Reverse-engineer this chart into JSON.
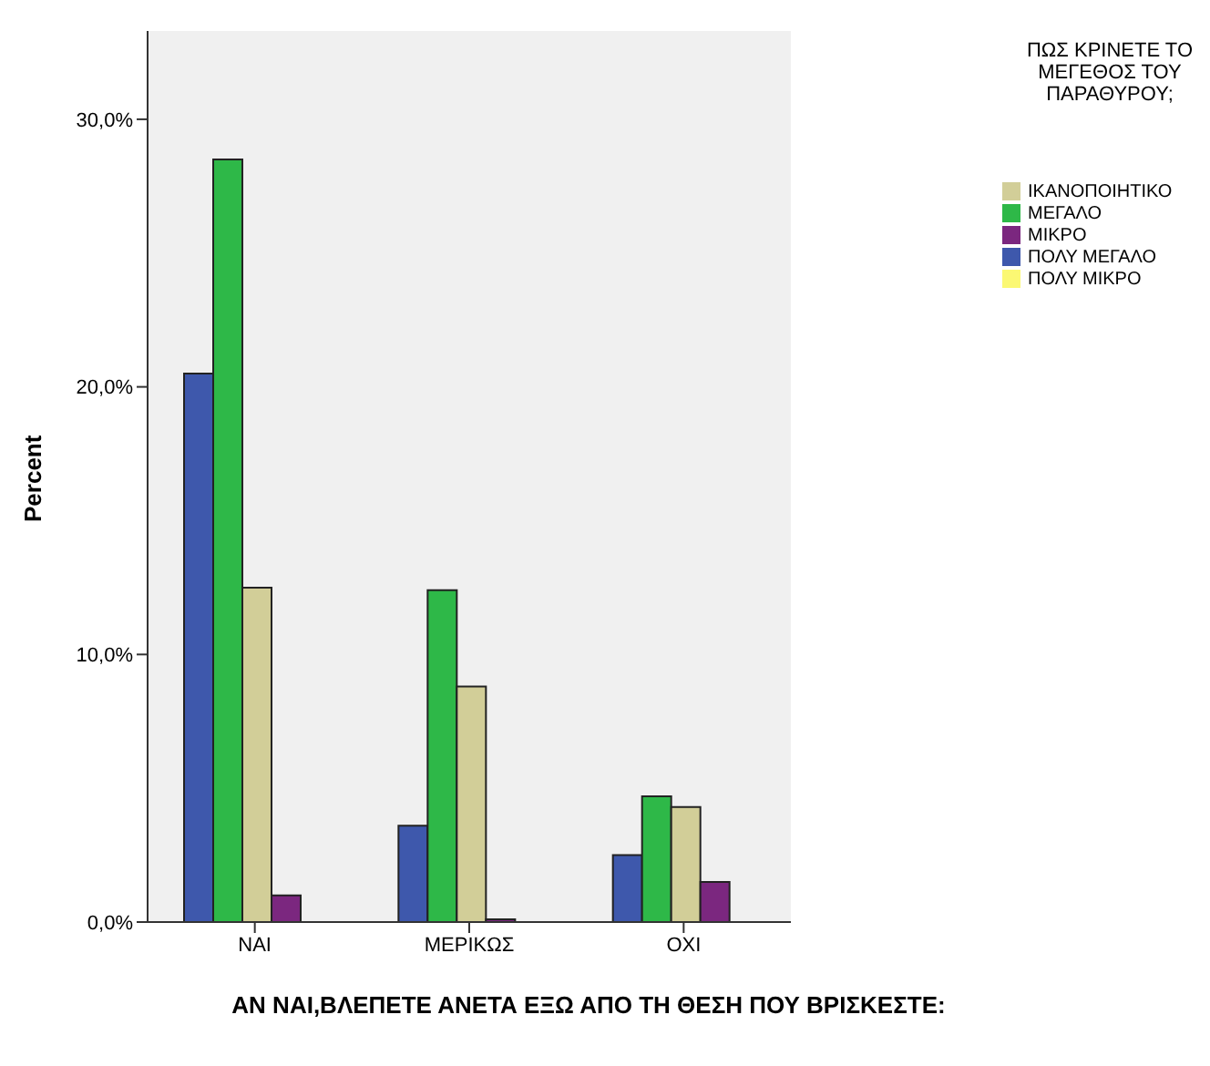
{
  "chart_data": {
    "type": "bar",
    "xlabel": "ΑΝ ΝΑΙ,ΒΛΕΠΕΤΕ ΑΝΕΤΑ ΕΞΩ ΑΠΟ ΤΗ ΘΕΣΗ ΠΟΥ ΒΡΙΣΚΕΣΤΕ:",
    "ylabel": "Percent",
    "legend_title": "ΠΩΣ ΚΡΙΝΕΤΕ ΤΟ ΜΕΓΕΘΟΣ ΤΟΥ ΠΑΡΑΘΥΡΟΥ;",
    "categories": [
      "ΝΑΙ",
      "ΜΕΡΙΚΩΣ",
      "ΟΧΙ"
    ],
    "series": [
      {
        "name": "ΠΟΛΥ ΜΕΓΑΛΟ",
        "color": "#3e58ac",
        "values": [
          20.5,
          3.6,
          2.5
        ]
      },
      {
        "name": "ΜΕΓΑΛΟ",
        "color": "#2eb848",
        "values": [
          28.5,
          12.4,
          4.7
        ]
      },
      {
        "name": "ΙΚΑΝΟΠΟΙΗΤΙΚΟ",
        "color": "#d2ce98",
        "values": [
          12.5,
          8.8,
          4.3
        ]
      },
      {
        "name": "ΜΙΚΡΟ",
        "color": "#7b277f",
        "values": [
          1.0,
          0.1,
          1.5
        ]
      },
      {
        "name": "ΠΟΛΥ ΜΙΚΡΟ",
        "color": "#fbf873",
        "values": [
          null,
          null,
          null
        ]
      }
    ],
    "ylim": [
      0,
      33.3
    ],
    "yticks": [
      {
        "value": 0,
        "label": "0,0%"
      },
      {
        "value": 10,
        "label": "10,0%"
      },
      {
        "value": 20,
        "label": "20,0%"
      },
      {
        "value": 30,
        "label": "30,0%"
      }
    ],
    "legend": "right"
  }
}
